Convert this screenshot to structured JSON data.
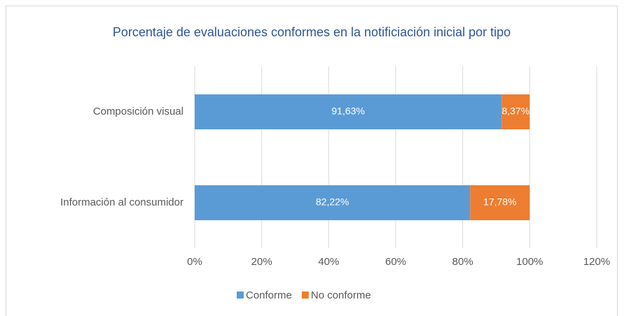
{
  "chart_data": {
    "type": "bar",
    "orientation": "horizontal",
    "stacked": true,
    "title": "Porcentaje de evaluaciones conformes en la notificiación inicial por tipo",
    "categories": [
      "Composición visual",
      "Información al consumidor"
    ],
    "series": [
      {
        "name": "Conforme",
        "color": "#5b9bd5",
        "values": [
          91.63,
          82.22
        ],
        "value_labels": [
          "91,63%",
          "82,22%"
        ]
      },
      {
        "name": "No conforme",
        "color": "#ed7d31",
        "values": [
          8.37,
          17.78
        ],
        "value_labels": [
          "8,37%",
          "17,78%"
        ]
      }
    ],
    "xlim": [
      0,
      120
    ],
    "xticks": [
      {
        "value": 0,
        "label": "0%"
      },
      {
        "value": 20,
        "label": "20%"
      },
      {
        "value": 40,
        "label": "40%"
      },
      {
        "value": 60,
        "label": "60%"
      },
      {
        "value": 80,
        "label": "80%"
      },
      {
        "value": 100,
        "label": "100%"
      },
      {
        "value": 120,
        "label": "120%"
      }
    ],
    "grid": true,
    "legend": "bottom"
  }
}
